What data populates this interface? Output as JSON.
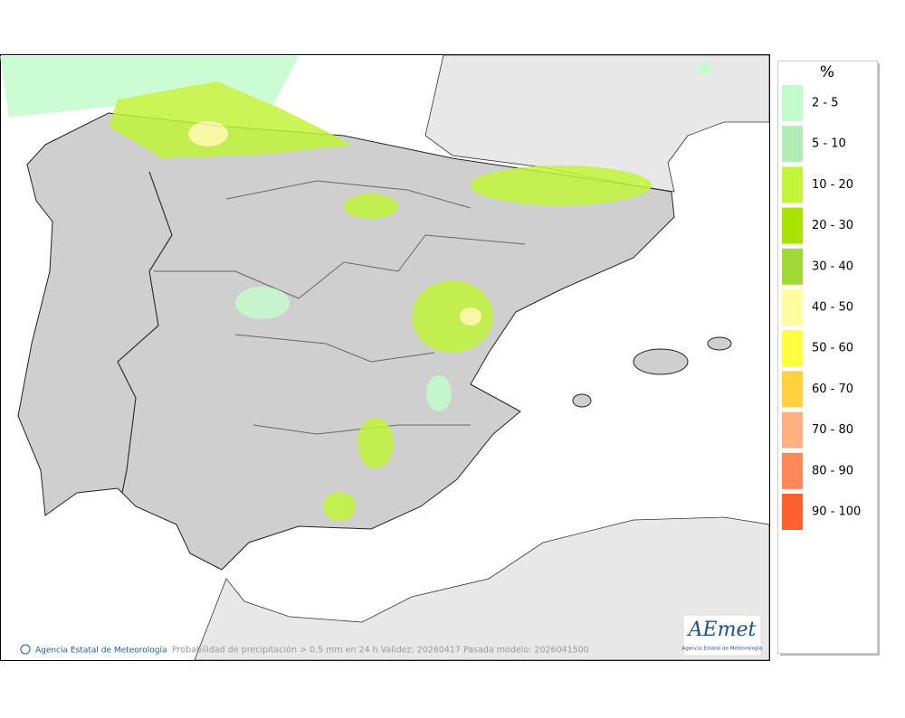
{
  "map": {
    "credit": "Agencia Estatal de Meteorología",
    "caption": "Probabilidad de precipitación > 0.5 mm en 24 h Validez: 20260417 Pasada modelo: 2026041500"
  },
  "legend": {
    "title": "%",
    "items": [
      {
        "label": "2 - 5",
        "color": "#c4fccc"
      },
      {
        "label": "5 - 10",
        "color": "#b4ecb8"
      },
      {
        "label": "10 - 20",
        "color": "#c2f43a"
      },
      {
        "label": "20 - 30",
        "color": "#a8e400"
      },
      {
        "label": "30 - 40",
        "color": "#a2d838"
      },
      {
        "label": "40 - 50",
        "color": "#fefea0"
      },
      {
        "label": "50 - 60",
        "color": "#fefe40"
      },
      {
        "label": "60 - 70",
        "color": "#ffd040"
      },
      {
        "label": "70 - 80",
        "color": "#ffb080"
      },
      {
        "label": "80 - 90",
        "color": "#ff8858"
      },
      {
        "label": "90 - 100",
        "color": "#ff6030"
      }
    ]
  },
  "logo": {
    "name": "AEmet",
    "subtitle": "Agencia Estatal de Meteorología"
  }
}
